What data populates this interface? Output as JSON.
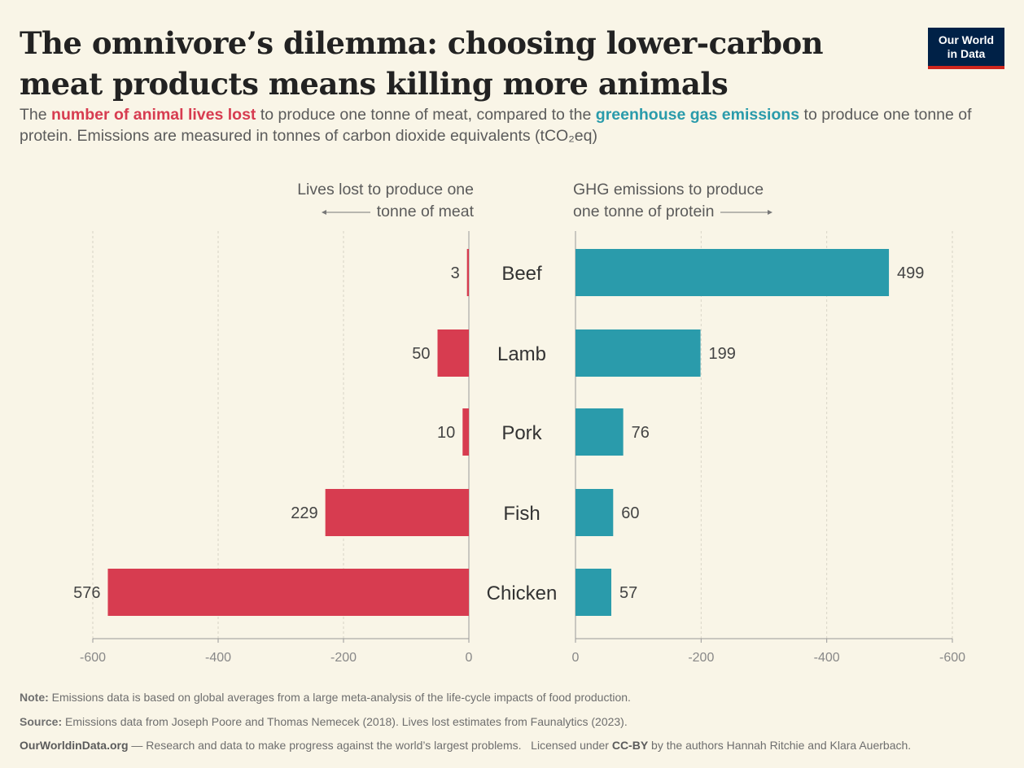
{
  "header": {
    "title": "The omnivore’s dilemma: choosing lower-carbon meat products means killing more animals",
    "logo_line1": "Our World",
    "logo_line2": "in Data",
    "subtitle_part1": "The ",
    "subtitle_red": "number of animal lives lost",
    "subtitle_part2": " to produce one tonne of meat, compared to the ",
    "subtitle_teal": "greenhouse gas emissions",
    "subtitle_part3": " to produce one tonne of protein. Emissions are measured in tonnes of carbon dioxide equivalents (tCO₂eq)"
  },
  "axes": {
    "left_head_line1": "Lives lost to produce one",
    "left_head_line2": "tonne of meat",
    "right_head_line1": "GHG emissions to produce",
    "right_head_line2": "one tonne of protein"
  },
  "chart_data": {
    "type": "bar",
    "orientation": "horizontal-diverging",
    "categories": [
      "Beef",
      "Lamb",
      "Pork",
      "Fish",
      "Chicken"
    ],
    "series": [
      {
        "name": "Lives lost to produce one tonne of meat",
        "values": [
          3,
          50,
          10,
          229,
          576
        ],
        "color": "#d73c50",
        "ticks": [
          "-600",
          "-400",
          "-200",
          "0"
        ],
        "xlim": [
          0,
          600
        ]
      },
      {
        "name": "GHG emissions to produce one tonne of protein",
        "values": [
          499,
          199,
          76,
          60,
          57
        ],
        "color": "#2a9bab",
        "ticks": [
          "0",
          "-200",
          "-400",
          "-600"
        ],
        "xlim": [
          0,
          600
        ]
      }
    ],
    "grid": true
  },
  "footer": {
    "note_label": "Note:",
    "note_text": " Emissions data is based on global averages from a large meta-analysis of the life-cycle impacts of food production.",
    "source_label": "Source:",
    "source_text": " Emissions data from Joseph Poore and Thomas Nemecek (2018). Lives lost estimates from Faunalytics (2023).",
    "site": "OurWorldinData.org",
    "site_text": " — Research and data to make progress against the world’s largest problems.   Licensed under ",
    "license": "CC-BY",
    "license_text": " by the authors Hannah Ritchie and Klara Auerbach."
  }
}
